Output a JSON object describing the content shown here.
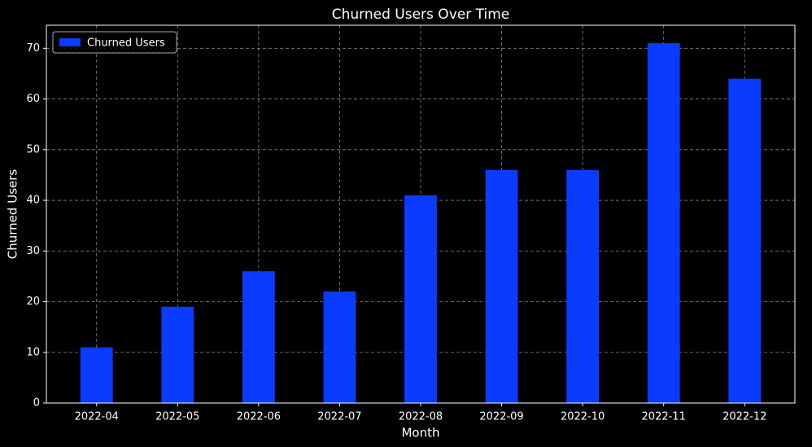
{
  "chart_data": {
    "type": "bar",
    "title": "Churned Users Over Time",
    "x_label": "Month",
    "y_label": "Churned Users",
    "categories": [
      "2022-04",
      "2022-05",
      "2022-06",
      "2022-07",
      "2022-08",
      "2022-09",
      "2022-10",
      "2022-11",
      "2022-12"
    ],
    "series": [
      {
        "name": "Churned Users",
        "color": "#0a3cff",
        "values": [
          11,
          19,
          26,
          22,
          41,
          46,
          46,
          71,
          64
        ]
      }
    ],
    "ylim": [
      0,
      74.55
    ],
    "yticks": [
      0,
      10,
      20,
      30,
      40,
      50,
      60,
      70
    ],
    "grid": true,
    "legend": "upper-left"
  }
}
